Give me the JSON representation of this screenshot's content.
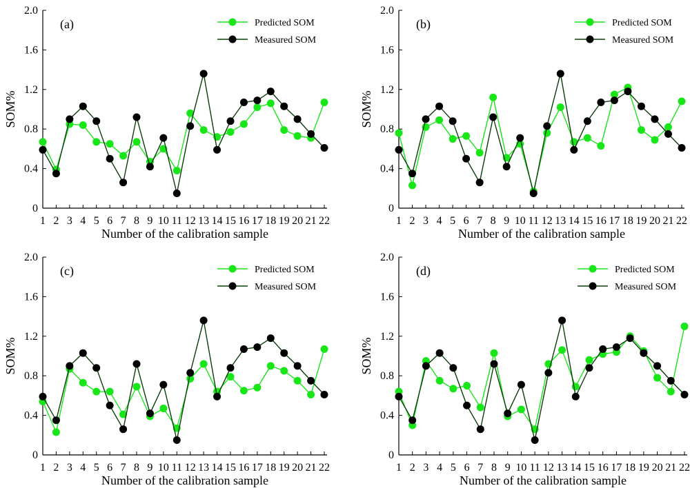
{
  "colors": {
    "predicted": "#19e619",
    "measured": "#0a3d0a",
    "measured_marker": "#000000"
  },
  "chart_data": [
    {
      "type": "line",
      "panel_label": "(a)",
      "xlabel": "Number of the calibration sample",
      "ylabel": "SOM%",
      "ylim": [
        0,
        2.0
      ],
      "yticks": [
        "0",
        "0.4",
        "0.8",
        "1.2",
        "1.6",
        "2.0"
      ],
      "yticks_values": [
        0,
        0.4,
        0.8,
        1.2,
        1.6,
        2.0
      ],
      "x": [
        "1",
        "2",
        "3",
        "4",
        "5",
        "6",
        "7",
        "8",
        "9",
        "10",
        "11",
        "12",
        "13",
        "14",
        "15",
        "16",
        "17",
        "18",
        "19",
        "20",
        "21",
        "22"
      ],
      "legend_position": "top-right",
      "series": [
        {
          "name": "Predicted SOM",
          "values": [
            0.67,
            0.39,
            0.85,
            0.84,
            0.67,
            0.65,
            0.53,
            0.67,
            0.47,
            0.6,
            0.38,
            0.96,
            0.79,
            0.72,
            0.77,
            0.85,
            1.02,
            1.06,
            0.79,
            0.73,
            0.71,
            1.07
          ]
        },
        {
          "name": "Measured SOM",
          "values": [
            0.59,
            0.35,
            0.9,
            1.03,
            0.88,
            0.5,
            0.26,
            0.92,
            0.42,
            0.71,
            0.15,
            0.83,
            1.36,
            0.59,
            0.88,
            1.07,
            1.09,
            1.18,
            1.03,
            0.9,
            0.75,
            0.61
          ]
        }
      ]
    },
    {
      "type": "line",
      "panel_label": "(b)",
      "xlabel": "Number of the calibration sample",
      "ylabel": "SOM%",
      "ylim": [
        0,
        2.0
      ],
      "yticks": [
        "0",
        "0.4",
        "0.8",
        "1.2",
        "1.6",
        "2.0"
      ],
      "yticks_values": [
        0,
        0.4,
        0.8,
        1.2,
        1.6,
        2.0
      ],
      "x": [
        "1",
        "2",
        "3",
        "4",
        "5",
        "6",
        "7",
        "8",
        "9",
        "10",
        "11",
        "12",
        "13",
        "14",
        "15",
        "16",
        "17",
        "18",
        "19",
        "20",
        "21",
        "22"
      ],
      "legend_position": "top-right",
      "series": [
        {
          "name": "Predicted SOM",
          "values": [
            0.76,
            0.23,
            0.82,
            0.89,
            0.7,
            0.73,
            0.56,
            1.12,
            0.51,
            0.65,
            0.17,
            0.76,
            1.02,
            0.67,
            0.71,
            0.63,
            1.15,
            1.22,
            0.79,
            0.69,
            0.82,
            1.08
          ]
        },
        {
          "name": "Measured SOM",
          "values": [
            0.59,
            0.35,
            0.9,
            1.03,
            0.88,
            0.5,
            0.26,
            0.92,
            0.42,
            0.71,
            0.15,
            0.83,
            1.36,
            0.59,
            0.88,
            1.07,
            1.09,
            1.18,
            1.03,
            0.9,
            0.75,
            0.61
          ]
        }
      ]
    },
    {
      "type": "line",
      "panel_label": "(c)",
      "xlabel": "Number of the calibration sample",
      "ylabel": "SOM%",
      "ylim": [
        0,
        2.0
      ],
      "yticks": [
        "0",
        "0.4",
        "0.8",
        "1.2",
        "1.6",
        "2.0"
      ],
      "yticks_values": [
        0,
        0.4,
        0.8,
        1.2,
        1.6,
        2.0
      ],
      "x": [
        "1",
        "2",
        "3",
        "4",
        "5",
        "6",
        "7",
        "8",
        "9",
        "10",
        "11",
        "12",
        "13",
        "14",
        "15",
        "16",
        "17",
        "18",
        "19",
        "20",
        "21",
        "22"
      ],
      "legend_position": "top-right",
      "series": [
        {
          "name": "Predicted SOM",
          "values": [
            0.54,
            0.23,
            0.87,
            0.73,
            0.64,
            0.64,
            0.41,
            0.69,
            0.39,
            0.47,
            0.27,
            0.77,
            0.92,
            0.64,
            0.79,
            0.65,
            0.68,
            0.9,
            0.85,
            0.75,
            0.61,
            1.07
          ]
        },
        {
          "name": "Measured SOM",
          "values": [
            0.59,
            0.35,
            0.9,
            1.03,
            0.88,
            0.5,
            0.26,
            0.92,
            0.42,
            0.71,
            0.15,
            0.83,
            1.36,
            0.59,
            0.88,
            1.07,
            1.09,
            1.18,
            1.03,
            0.9,
            0.75,
            0.61
          ]
        }
      ]
    },
    {
      "type": "line",
      "panel_label": "(d)",
      "xlabel": "Number of the calibration sample",
      "ylabel": "SOM%",
      "ylim": [
        0,
        2.0
      ],
      "yticks": [
        "0",
        "0.4",
        "0.8",
        "1.2",
        "1.6",
        "2.0"
      ],
      "yticks_values": [
        0,
        0.4,
        0.8,
        1.2,
        1.6,
        2.0
      ],
      "x": [
        "1",
        "2",
        "3",
        "4",
        "5",
        "6",
        "7",
        "8",
        "9",
        "10",
        "11",
        "12",
        "13",
        "14",
        "15",
        "16",
        "17",
        "18",
        "19",
        "20",
        "21",
        "22"
      ],
      "legend_position": "top-right",
      "series": [
        {
          "name": "Predicted SOM",
          "values": [
            0.64,
            0.3,
            0.95,
            0.75,
            0.67,
            0.7,
            0.48,
            1.03,
            0.39,
            0.46,
            0.26,
            0.92,
            1.06,
            0.69,
            0.96,
            1.02,
            1.04,
            1.2,
            1.05,
            0.78,
            0.64,
            1.3
          ]
        },
        {
          "name": "Measured SOM",
          "values": [
            0.59,
            0.35,
            0.9,
            1.03,
            0.88,
            0.5,
            0.26,
            0.92,
            0.42,
            0.71,
            0.15,
            0.83,
            1.36,
            0.59,
            0.88,
            1.07,
            1.09,
            1.18,
            1.03,
            0.9,
            0.75,
            0.61
          ]
        }
      ]
    }
  ]
}
